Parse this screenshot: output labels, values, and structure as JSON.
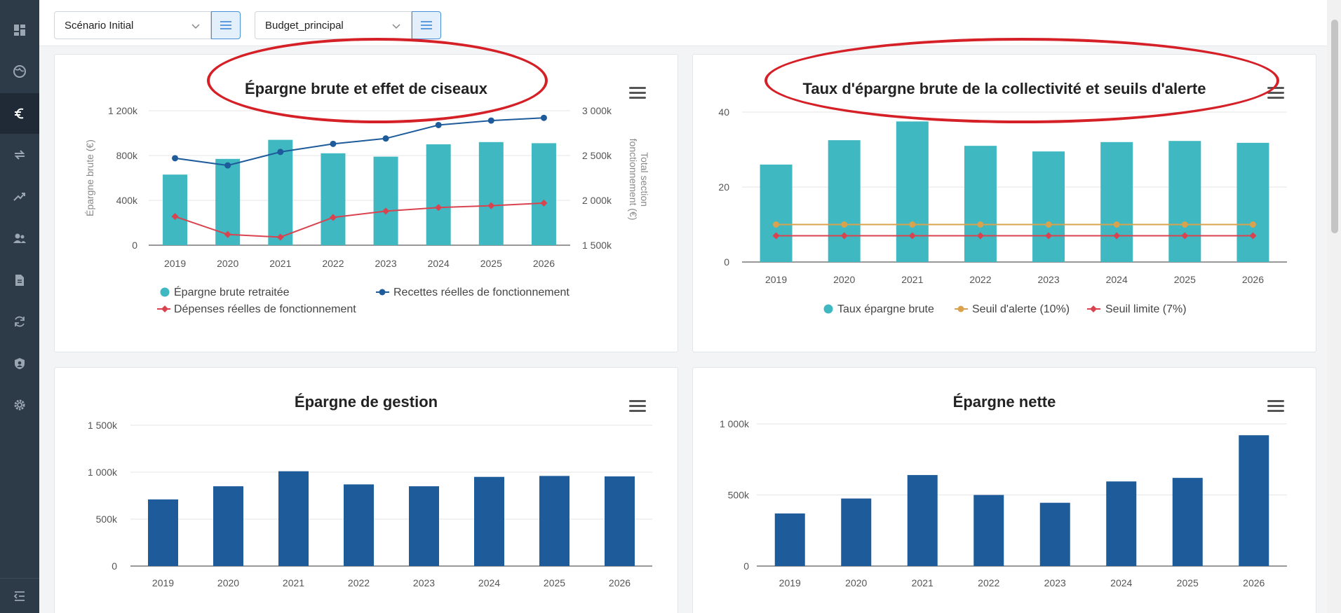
{
  "toolbar": {
    "scenario": "Scénario Initial",
    "budget": "Budget_principal"
  },
  "nav": [
    "dashboard-icon",
    "globe-icon",
    "euro-icon",
    "transfer-icon",
    "trend-icon",
    "users-icon",
    "document-icon",
    "refresh-icon",
    "shield-icon",
    "gear-icon"
  ],
  "colors": {
    "teal": "#3fb8c1",
    "navy": "#1e5b9a",
    "red": "#d9434f",
    "orange": "#d9a24e",
    "annotation": "#d42026"
  },
  "charts": {
    "c1": {
      "title": "Épargne brute et effet de ciseaux",
      "y_left_label": "Épargne brute (€)",
      "y_right_label_1": "Total section",
      "y_right_label_2": "fonctionnement (€)",
      "y_left_ticks": [
        "1 200k",
        "800k",
        "400k",
        "0"
      ],
      "y_right_ticks": [
        "3 000k",
        "2 500k",
        "2 000k",
        "1 500k"
      ],
      "legend": [
        "Épargne brute retraitée",
        "Recettes réelles de fonctionnement",
        "Dépenses réelles de fonctionnement"
      ]
    },
    "c2": {
      "title": "Taux d'épargne brute de la collectivité et seuils d'alerte",
      "y_ticks": [
        "40",
        "20",
        "0"
      ],
      "legend": [
        "Taux épargne brute",
        "Seuil d'alerte (10%)",
        "Seuil limite (7%)"
      ]
    },
    "c3": {
      "title": "Épargne de gestion",
      "y_ticks": [
        "1 500k",
        "1 000k",
        "500k",
        "0"
      ]
    },
    "c4": {
      "title": "Épargne nette",
      "y_ticks": [
        "1 000k",
        "500k",
        "0"
      ]
    }
  },
  "chart_data": [
    {
      "type": "bar",
      "title": "Épargne brute et effet de ciseaux",
      "categories": [
        "2019",
        "2020",
        "2021",
        "2022",
        "2023",
        "2024",
        "2025",
        "2026"
      ],
      "ylabel": "Épargne brute (€)",
      "y2label": "Total section fonctionnement (€)",
      "ylim": [
        0,
        1200000
      ],
      "y2lim": [
        1500000,
        3000000
      ],
      "series": [
        {
          "name": "Épargne brute retraitée",
          "type": "bar",
          "axis": "left",
          "values": [
            630000,
            770000,
            940000,
            820000,
            790000,
            900000,
            920000,
            910000
          ]
        },
        {
          "name": "Recettes réelles de fonctionnement",
          "type": "line",
          "axis": "right",
          "values": [
            2470000,
            2390000,
            2540000,
            2630000,
            2690000,
            2840000,
            2890000,
            2920000
          ]
        },
        {
          "name": "Dépenses réelles de fonctionnement",
          "type": "line",
          "axis": "right",
          "values": [
            1820000,
            1620000,
            1590000,
            1810000,
            1880000,
            1920000,
            1940000,
            1970000
          ]
        }
      ]
    },
    {
      "type": "bar",
      "title": "Taux d'épargne brute de la collectivité et seuils d'alerte",
      "categories": [
        "2019",
        "2020",
        "2021",
        "2022",
        "2023",
        "2024",
        "2025",
        "2026"
      ],
      "ylim": [
        0,
        40
      ],
      "series": [
        {
          "name": "Taux épargne brute",
          "type": "bar",
          "values": [
            26,
            32.5,
            37.5,
            31,
            29.5,
            32,
            32.3,
            31.8
          ]
        },
        {
          "name": "Seuil d'alerte (10%)",
          "type": "line",
          "values": [
            10,
            10,
            10,
            10,
            10,
            10,
            10,
            10
          ]
        },
        {
          "name": "Seuil limite (7%)",
          "type": "line",
          "values": [
            7,
            7,
            7,
            7,
            7,
            7,
            7,
            7
          ]
        }
      ]
    },
    {
      "type": "bar",
      "title": "Épargne de gestion",
      "categories": [
        "2019",
        "2020",
        "2021",
        "2022",
        "2023",
        "2024",
        "2025",
        "2026"
      ],
      "ylim": [
        0,
        1500000
      ],
      "values": [
        710000,
        850000,
        1010000,
        870000,
        850000,
        950000,
        960000,
        955000
      ]
    },
    {
      "type": "bar",
      "title": "Épargne nette",
      "categories": [
        "2019",
        "2020",
        "2021",
        "2022",
        "2023",
        "2024",
        "2025",
        "2026"
      ],
      "ylim": [
        0,
        1000000
      ],
      "values": [
        370000,
        475000,
        640000,
        500000,
        445000,
        595000,
        620000,
        920000
      ]
    }
  ]
}
